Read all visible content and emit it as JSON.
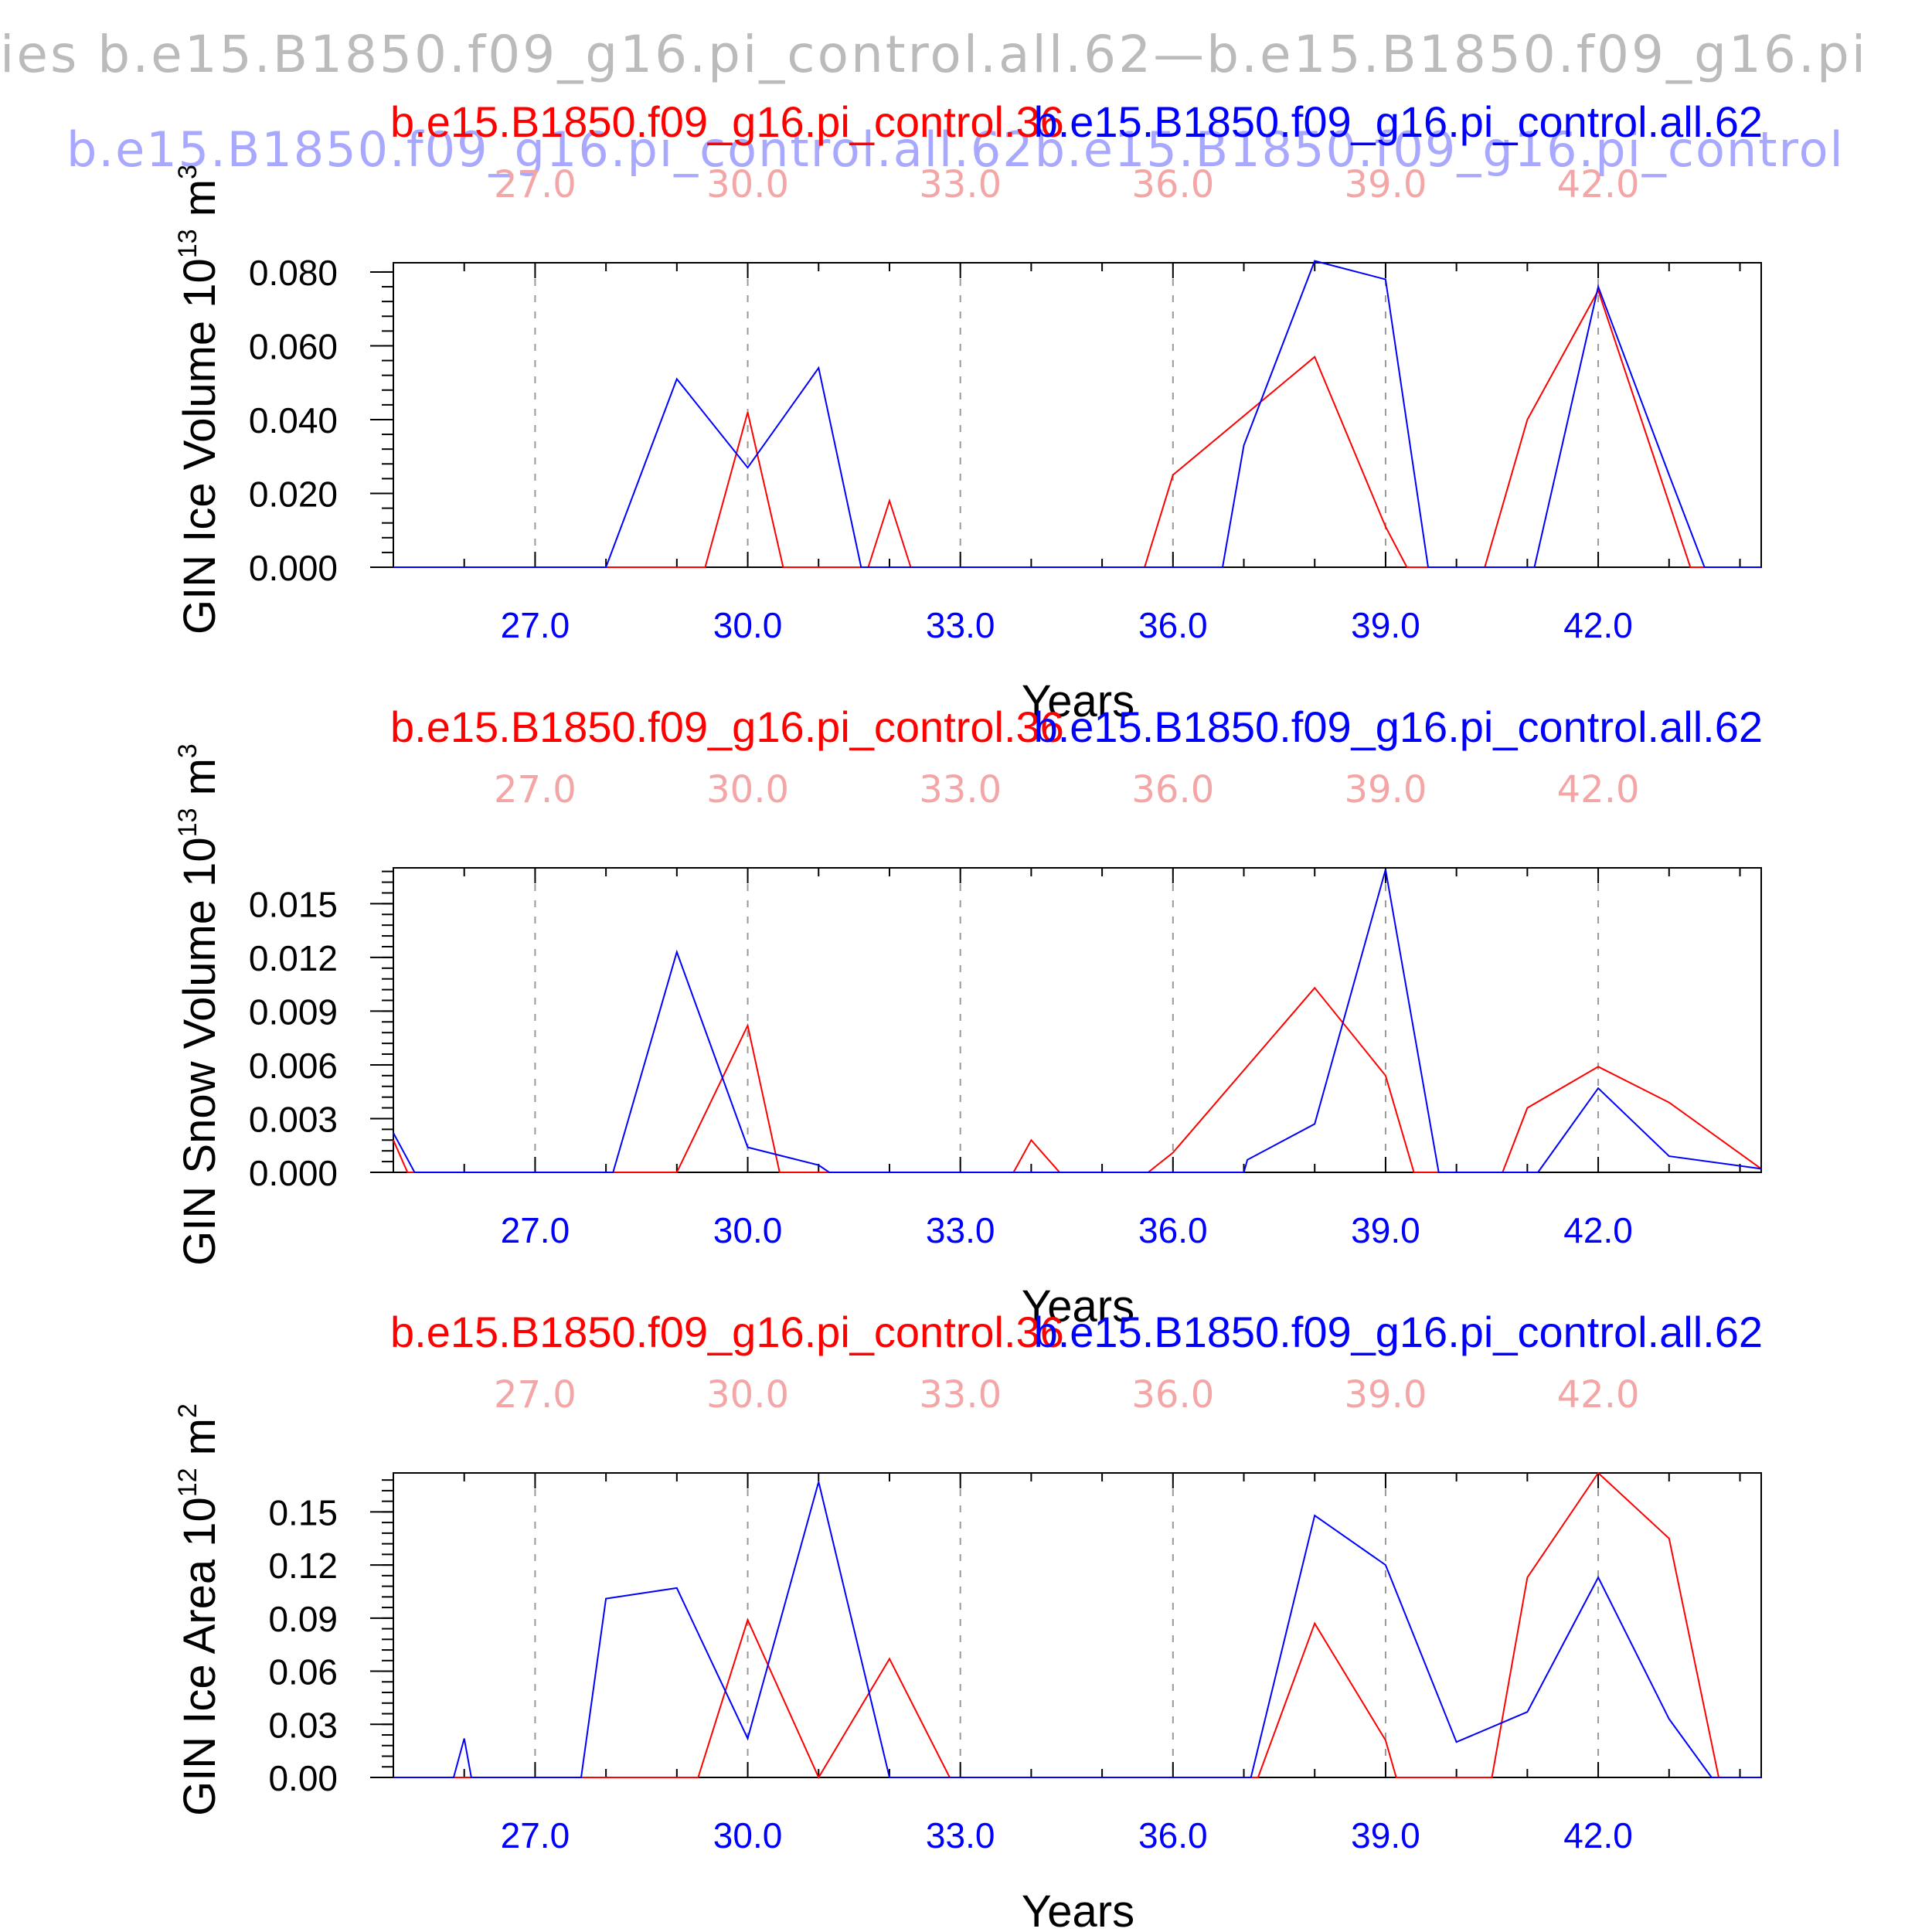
{
  "page_title": "ies  b.e15.B1850.f09_g16.pi_control.all.62—b.e15.B1850.f09_g16.pi",
  "faint_caption": "b.e15.B1850.f09_g16.pi_control.all.62b.e15.B1850.f09_g16.pi_control",
  "colors": {
    "case1": "#ff0000",
    "case2": "#0000ff",
    "top_axis": "#f4a6a6",
    "page_title": "#bbbbbb",
    "faint_caption": "#a8a8ff",
    "grid": "#999999",
    "frame": "#000000"
  },
  "chart_data": [
    {
      "type": "line",
      "title_left": "b.e15.B1850.f09_g16.pi_control.36",
      "title_right": "b.e15.B1850.f09_g16.pi_control.all.62",
      "ylabel": "GIN Ice Volume 10",
      "ylabel_exp": "13",
      "ylabel_unit": " m",
      "ylabel_unit_exp": "3",
      "xlabel": "Years",
      "xlim": [
        25,
        44.3
      ],
      "ylim": [
        0,
        0.0825
      ],
      "yticks": [
        0,
        0.02,
        0.04,
        0.06,
        0.08
      ],
      "ytick_labels": [
        "0.000",
        "0.020",
        "0.040",
        "0.060",
        "0.080"
      ],
      "xticks": [
        27,
        30,
        33,
        36,
        39,
        42
      ],
      "xtick_labels": [
        "27.0",
        "30.0",
        "33.0",
        "36.0",
        "39.0",
        "42.0"
      ],
      "grid": "dashed vertical at x ticks",
      "series": [
        {
          "color": "red",
          "x": [
            25,
            29.4,
            30,
            30.5,
            31.7,
            32,
            32.3,
            35.6,
            36,
            38,
            39,
            39.3,
            40.4,
            41,
            42,
            42.8,
            43.3,
            44.3
          ],
          "y": [
            0,
            0,
            0.042,
            0,
            0,
            0.018,
            0,
            0,
            0.025,
            0.057,
            0.011,
            0,
            0,
            0.04,
            0.075,
            0.029,
            0,
            0
          ]
        },
        {
          "color": "blue",
          "x": [
            25,
            28,
            29,
            30,
            31,
            31.6,
            36.7,
            37,
            38,
            39,
            39.6,
            41.1,
            42,
            43,
            43.5,
            44.3
          ],
          "y": [
            0,
            0,
            0.051,
            0.027,
            0.054,
            0,
            0,
            0.033,
            0.083,
            0.078,
            0,
            0,
            0.076,
            0.025,
            0,
            0
          ]
        }
      ]
    },
    {
      "type": "line",
      "title_left": "b.e15.B1850.f09_g16.pi_control.36",
      "title_right": "b.e15.B1850.f09_g16.pi_control.all.62",
      "ylabel": "GIN Snow Volume 10",
      "ylabel_exp": "13",
      "ylabel_unit": " m",
      "ylabel_unit_exp": "3",
      "xlabel": "Years",
      "xlim": [
        25,
        44.3
      ],
      "ylim": [
        0,
        0.017
      ],
      "yticks": [
        0,
        0.003,
        0.006,
        0.009,
        0.012,
        0.015
      ],
      "ytick_labels": [
        "0.000",
        "0.003",
        "0.006",
        "0.009",
        "0.012",
        "0.015"
      ],
      "xticks": [
        27,
        30,
        33,
        36,
        39,
        42
      ],
      "xtick_labels": [
        "27.0",
        "30.0",
        "33.0",
        "36.0",
        "39.0",
        "42.0"
      ],
      "grid": "dashed vertical at x ticks",
      "series": [
        {
          "color": "red",
          "x": [
            25,
            25.2,
            29,
            30,
            30.45,
            33.75,
            34,
            34.4,
            35.65,
            36,
            38,
            39,
            39.4,
            40.65,
            41,
            42,
            43,
            44.3
          ],
          "y": [
            0.0018,
            0,
            0,
            0.0082,
            0,
            0,
            0.0018,
            0,
            0,
            0.0011,
            0.0103,
            0.0054,
            0,
            0,
            0.0036,
            0.0059,
            0.0039,
            0.0002
          ]
        },
        {
          "color": "blue",
          "x": [
            25,
            25.3,
            28.1,
            29,
            30,
            31,
            31.15,
            37,
            37.05,
            38,
            39,
            39.75,
            41.15,
            42,
            43,
            44.3
          ],
          "y": [
            0.0022,
            0,
            0,
            0.0123,
            0.0014,
            0.0004,
            0,
            0,
            0.0007,
            0.0027,
            0.0169,
            0,
            0,
            0.0047,
            0.0009,
            0.0002
          ]
        }
      ]
    },
    {
      "type": "line",
      "title_left": "b.e15.B1850.f09_g16.pi_control.36",
      "title_right": "b.e15.B1850.f09_g16.pi_control.all.62",
      "ylabel": "GIN Ice Area 10",
      "ylabel_exp": "12",
      "ylabel_unit": " m",
      "ylabel_unit_exp": "2",
      "xlabel": "Years",
      "xlim": [
        25,
        44.3
      ],
      "ylim": [
        0,
        0.172
      ],
      "yticks": [
        0,
        0.03,
        0.06,
        0.09,
        0.12,
        0.15
      ],
      "ytick_labels": [
        "0.00",
        "0.03",
        "0.06",
        "0.09",
        "0.12",
        "0.15"
      ],
      "xticks": [
        27,
        30,
        33,
        36,
        39,
        42
      ],
      "xtick_labels": [
        "27.0",
        "30.0",
        "33.0",
        "36.0",
        "39.0",
        "42.0"
      ],
      "grid": "dashed vertical at x ticks",
      "series": [
        {
          "color": "red",
          "x": [
            25,
            29.3,
            30,
            31,
            32,
            32.85,
            37.2,
            38,
            39,
            39.15,
            40.5,
            41,
            42,
            43,
            43.7,
            44.3
          ],
          "y": [
            0,
            0,
            0.089,
            0,
            0.067,
            0,
            0,
            0.087,
            0.021,
            0,
            0,
            0.113,
            0.172,
            0.135,
            0,
            0
          ]
        },
        {
          "color": "blue",
          "x": [
            25,
            25.85,
            26,
            26.1,
            27.65,
            28,
            29,
            30,
            31,
            32,
            37.1,
            38,
            39,
            40,
            41,
            42,
            43,
            43.6,
            44.3
          ],
          "y": [
            0,
            0,
            0.022,
            0,
            0,
            0.101,
            0.107,
            0.022,
            0.167,
            0,
            0,
            0.148,
            0.12,
            0.02,
            0.037,
            0.113,
            0.033,
            0,
            0
          ]
        }
      ]
    }
  ]
}
